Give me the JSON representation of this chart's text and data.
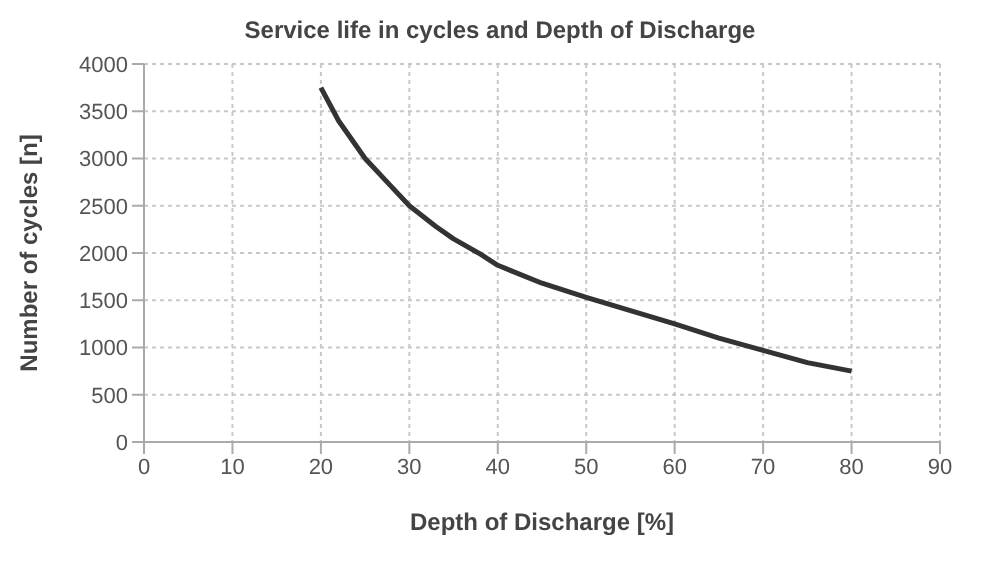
{
  "chart_data": {
    "type": "line",
    "title": "Service life in cycles and Depth of Discharge",
    "xlabel": "Depth of Discharge [%]",
    "ylabel": "Number of cycles [n]",
    "x": [
      20,
      22,
      25,
      28,
      30,
      33,
      35,
      38,
      40,
      45,
      50,
      55,
      60,
      65,
      70,
      75,
      80
    ],
    "series": [
      {
        "color": "#333333",
        "values": [
          3750,
          3400,
          3000,
          2700,
          2500,
          2280,
          2150,
          1990,
          1870,
          1680,
          1530,
          1390,
          1250,
          1100,
          970,
          840,
          750
        ]
      }
    ],
    "xlim": [
      0,
      90
    ],
    "xticks": [
      0,
      10,
      20,
      30,
      40,
      50,
      60,
      70,
      80,
      90
    ],
    "ylim": [
      0,
      4000
    ],
    "yticks": [
      0,
      500,
      1000,
      1500,
      2000,
      2500,
      3000,
      3500,
      4000
    ],
    "grid": true,
    "marker": "none",
    "line_style": "solid"
  }
}
